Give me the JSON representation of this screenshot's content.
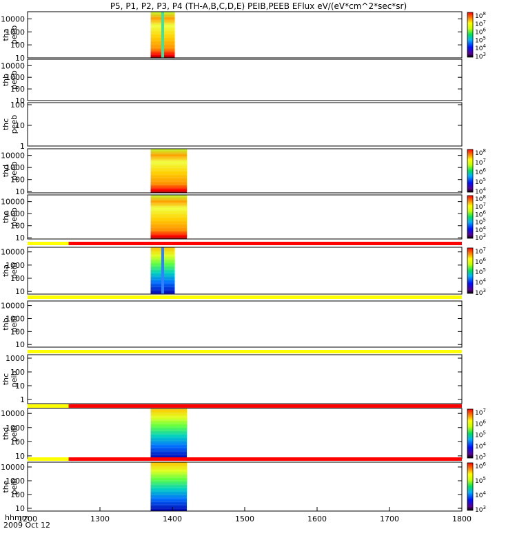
{
  "chart_data": {
    "type": "heatmap",
    "title": "P5, P1, P2, P3, P4 (TH-A,B,C,D,E) PEIB,PEEB EFlux eV/(eV*cm^2*sec*sr)",
    "x_axis": {
      "label": "hhmm",
      "date_label": "2009 Oct 12",
      "range": [
        "1200",
        "1800"
      ],
      "ticks": [
        "1200",
        "1300",
        "1400",
        "1500",
        "1600",
        "1700",
        "1800"
      ]
    },
    "colors": {
      "status_yellow": "#ffff00",
      "status_red": "#ff0000",
      "low_flux": "#0000aa",
      "high_flux": "#cc0000"
    },
    "panels": [
      {
        "label_line1": "tha",
        "label_line2": "peeb",
        "yticks": [
          "10000",
          "1000",
          "100",
          "10"
        ],
        "ylog": [
          1,
          4.55
        ],
        "data_intervals": [
          [
            "1342",
            "1402"
          ]
        ],
        "colorbar": [
          "10^3",
          "10^4",
          "10^5",
          "10^6",
          "10^7",
          "10^8"
        ]
      },
      {
        "label_line1": "thb",
        "label_line2": "peeb",
        "yticks": [
          "10000",
          "1000",
          "100",
          "10"
        ],
        "ylog": [
          1,
          4.55
        ],
        "data_intervals": [],
        "colorbar": []
      },
      {
        "label_line1": "thc",
        "label_line2": "peeb",
        "yticks": [
          "100",
          "10",
          "1"
        ],
        "ylog": [
          0,
          2.1
        ],
        "data_intervals": [],
        "colorbar": []
      },
      {
        "label_line1": "thd",
        "label_line2": "peeb",
        "yticks": [
          "10000",
          "1000",
          "100",
          "10"
        ],
        "ylog": [
          0.9,
          4.55
        ],
        "data_intervals": [
          [
            "1342",
            "1372"
          ]
        ],
        "colorbar": [
          "10^4",
          "10^5",
          "10^6",
          "10^7",
          "10^8"
        ]
      },
      {
        "label_line1": "the",
        "label_line2": "peeb",
        "yticks": [
          "10000",
          "1000",
          "100",
          "10"
        ],
        "ylog": [
          0.9,
          4.55
        ],
        "data_intervals": [
          [
            "1342",
            "1372"
          ]
        ],
        "colorbar": [
          "10^3",
          "10^4",
          "10^5",
          "10^6",
          "10^7",
          "10^8"
        ]
      },
      {
        "label_line1": "tha",
        "label_line2": "peib",
        "yticks": [
          "10000",
          "1000",
          "100",
          "10"
        ],
        "ylog": [
          0.8,
          4.35
        ],
        "data_intervals": [
          [
            "1342",
            "1402"
          ]
        ],
        "colorbar": [
          "10^3",
          "10^4",
          "10^5",
          "10^6",
          "10^7"
        ]
      },
      {
        "label_line1": "thb",
        "label_line2": "peib",
        "yticks": [
          "10000",
          "1000",
          "100",
          "10"
        ],
        "ylog": [
          0.8,
          4.35
        ],
        "data_intervals": [],
        "colorbar": []
      },
      {
        "label_line1": "thc",
        "label_line2": "peib",
        "yticks": [
          "1000",
          "100",
          "10",
          "1"
        ],
        "ylog": [
          -0.3,
          3.25
        ],
        "data_intervals": [],
        "colorbar": []
      },
      {
        "label_line1": "thd",
        "label_line2": "peib",
        "yticks": [
          "10000",
          "1000",
          "100",
          "10"
        ],
        "ylog": [
          0.8,
          4.35
        ],
        "data_intervals": [
          [
            "1342",
            "1372"
          ]
        ],
        "colorbar": [
          "10^3",
          "10^4",
          "10^5",
          "10^6",
          "10^7"
        ]
      },
      {
        "label_line1": "the",
        "label_line2": "peib",
        "yticks": [
          "10000",
          "1000",
          "100",
          "10"
        ],
        "ylog": [
          0.8,
          4.35
        ],
        "data_intervals": [
          [
            "1342",
            "1372"
          ]
        ],
        "colorbar": [
          "10^3",
          "10^4",
          "10^5",
          "10^6"
        ]
      }
    ],
    "status_bars": [
      {
        "segments": [
          {
            "from": "1200",
            "to": "1234",
            "state": "yellow"
          },
          {
            "from": "1234",
            "to": "1800",
            "state": "red"
          }
        ]
      },
      {
        "segments": [
          {
            "from": "1200",
            "to": "1800",
            "state": "yellow"
          }
        ]
      },
      {
        "segments": [
          {
            "from": "1200",
            "to": "1800",
            "state": "yellow"
          }
        ]
      },
      {
        "segments": [
          {
            "from": "1200",
            "to": "1234",
            "state": "yellow"
          },
          {
            "from": "1234",
            "to": "1800",
            "state": "red"
          }
        ]
      },
      {
        "segments": [
          {
            "from": "1200",
            "to": "1234",
            "state": "yellow"
          },
          {
            "from": "1234",
            "to": "1800",
            "state": "red"
          }
        ]
      }
    ]
  }
}
